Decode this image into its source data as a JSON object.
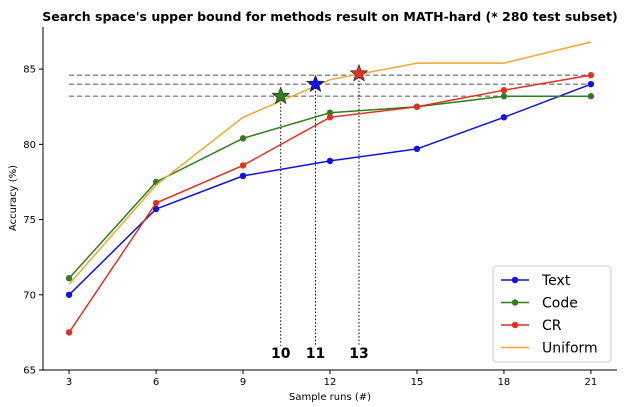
{
  "chart_data": {
    "type": "line",
    "title": "Search space's upper bound for methods result on MATH-hard (* 280 test subset)",
    "xlabel": "Sample runs (#)",
    "ylabel": "Accuracy (%)",
    "x": [
      3,
      6,
      9,
      12,
      15,
      18,
      21
    ],
    "xlim": [
      2.1,
      21.9
    ],
    "ylim": [
      65,
      87.8
    ],
    "xticks": [
      3,
      6,
      9,
      12,
      15,
      18,
      21
    ],
    "yticks": [
      65,
      70,
      75,
      80,
      85
    ],
    "grid": false,
    "legend_position": "lower right",
    "series": [
      {
        "name": "Text",
        "color": "#1010e8",
        "marker": "circle",
        "values": [
          70.0,
          75.7,
          77.9,
          78.9,
          79.7,
          81.8,
          84.0
        ]
      },
      {
        "name": "Code",
        "color": "#2e7d1f",
        "marker": "circle",
        "values": [
          71.1,
          77.5,
          80.4,
          82.1,
          82.5,
          83.2,
          83.2
        ]
      },
      {
        "name": "CR",
        "color": "#e03020",
        "marker": "circle",
        "values": [
          67.5,
          76.1,
          78.6,
          81.8,
          82.5,
          83.6,
          84.6
        ]
      },
      {
        "name": "Uniform",
        "color": "#f0a830",
        "marker": "none",
        "values": [
          70.7,
          77.3,
          81.8,
          84.3,
          85.4,
          85.4,
          86.8
        ]
      }
    ],
    "upper_bound_lines": [
      {
        "y": 84.6,
        "color": "#808080"
      },
      {
        "y": 84.0,
        "color": "#808080"
      },
      {
        "y": 83.2,
        "color": "#808080"
      }
    ],
    "star_markers": [
      {
        "x": 10.3,
        "y": 83.2,
        "label": "10",
        "color": "#2e7d1f"
      },
      {
        "x": 11.5,
        "y": 84.0,
        "label": "11",
        "color": "#1010e8"
      },
      {
        "x": 13.0,
        "y": 84.7,
        "label": "13",
        "color": "#e03020"
      }
    ]
  }
}
